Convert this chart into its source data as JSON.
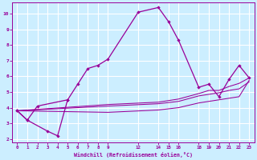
{
  "xlabel": "Windchill (Refroidissement éolien,°C)",
  "bg_color": "#cceeff",
  "grid_color": "#ffffff",
  "line_color": "#990099",
  "xlim": [
    -0.5,
    23.5
  ],
  "ylim": [
    1.8,
    10.7
  ],
  "yticks": [
    2,
    3,
    4,
    5,
    6,
    7,
    8,
    9,
    10
  ],
  "xticks": [
    0,
    1,
    2,
    3,
    4,
    5,
    6,
    7,
    8,
    9,
    12,
    14,
    15,
    16,
    18,
    19,
    20,
    21,
    22,
    23
  ],
  "s1_x": [
    0,
    1,
    2,
    5,
    6,
    7,
    8,
    9,
    12,
    14,
    15,
    16,
    18,
    19,
    20,
    21,
    22,
    23
  ],
  "s1_y": [
    3.8,
    3.2,
    4.1,
    4.5,
    5.5,
    6.5,
    6.7,
    7.1,
    10.1,
    10.4,
    9.5,
    8.3,
    5.3,
    5.5,
    4.7,
    5.8,
    6.7,
    5.9
  ],
  "s2_x": [
    0,
    1,
    3,
    4,
    5
  ],
  "s2_y": [
    3.8,
    3.2,
    2.5,
    2.2,
    4.5
  ],
  "fl1_x": [
    0,
    9,
    14,
    16,
    18,
    19,
    20,
    21,
    22,
    23
  ],
  "fl1_y": [
    3.8,
    4.2,
    4.35,
    4.55,
    4.9,
    5.1,
    5.1,
    5.35,
    5.55,
    5.9
  ],
  "fl2_x": [
    0,
    9,
    14,
    16,
    18,
    19,
    20,
    21,
    22,
    23
  ],
  "fl2_y": [
    3.8,
    4.1,
    4.25,
    4.4,
    4.75,
    4.85,
    4.95,
    5.1,
    5.2,
    5.65
  ],
  "fl3_x": [
    0,
    9,
    14,
    16,
    18,
    19,
    20,
    21,
    22,
    23
  ],
  "fl3_y": [
    3.8,
    3.7,
    3.85,
    4.0,
    4.3,
    4.4,
    4.5,
    4.6,
    4.7,
    5.75
  ]
}
